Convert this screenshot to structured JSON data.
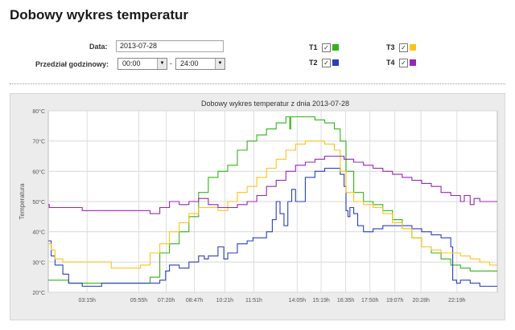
{
  "header": {
    "title": "Dobowy wykres temperatur"
  },
  "form": {
    "date_label": "Data:",
    "date_value": "2013-07-28",
    "range_label": "Przedział godzinowy:",
    "time_from": "00:00",
    "time_to": "24:00",
    "separator": "-"
  },
  "series_toggles": [
    {
      "label": "T1",
      "checked": true,
      "color": "#33b31a"
    },
    {
      "label": "T2",
      "checked": true,
      "color": "#2b3fbf"
    },
    {
      "label": "T3",
      "checked": true,
      "color": "#ffc21a"
    },
    {
      "label": "T4",
      "checked": true,
      "color": "#9926b8"
    }
  ],
  "chart_data": {
    "type": "line",
    "title": "Dobowy wykres temperatur  z dnia 2013-07-28",
    "ylabel": "Temperatura",
    "xlabel": "",
    "xlim": [
      1.25,
      24.4
    ],
    "ylim": [
      20,
      80
    ],
    "yticks": [
      20,
      30,
      40,
      50,
      60,
      70,
      80
    ],
    "ytick_labels": [
      "20°C",
      "30°C",
      "40°C",
      "50°C",
      "60°C",
      "70°C",
      "80°C"
    ],
    "xticks": [
      3.25,
      5.917,
      7.333,
      8.783,
      10.35,
      11.85,
      14.083,
      15.317,
      16.583,
      17.833,
      19.117,
      20.467,
      22.317
    ],
    "xtick_labels": [
      "03:15h",
      "05:55h",
      "07:20h",
      "08:47h",
      "10:21h",
      "11:51h",
      "14:05h",
      "15:19h",
      "16:35h",
      "17:50h",
      "19:07h",
      "20:28h",
      "22:19h"
    ],
    "grid": true,
    "series": [
      {
        "name": "T1",
        "color": "#33b31a",
        "x": [
          1.25,
          2.2,
          2.3,
          5.0,
          6.0,
          6.5,
          7.0,
          7.5,
          8.0,
          8.5,
          9.0,
          9.5,
          10.0,
          10.5,
          11.0,
          11.5,
          12.0,
          12.5,
          13.0,
          13.5,
          13.7,
          13.75,
          14.5,
          15.0,
          15.5,
          16.0,
          16.3,
          16.6,
          17.0,
          17.5,
          18.0,
          18.5,
          19.0,
          19.5,
          20.0,
          20.5,
          21.0,
          21.5,
          22.0,
          22.5,
          23.0,
          23.5,
          24.4
        ],
        "y": [
          24,
          24,
          23,
          23,
          23,
          25,
          33,
          36,
          40,
          45,
          53,
          58,
          60,
          62,
          67,
          70,
          72,
          74,
          76,
          78,
          74,
          78,
          78,
          77,
          76,
          74,
          70,
          60,
          53,
          50,
          49,
          47,
          44,
          41,
          38,
          35,
          33,
          31,
          29,
          28,
          27,
          27,
          27
        ]
      },
      {
        "name": "T2",
        "color": "#2b3fbf",
        "x": [
          1.25,
          1.4,
          1.6,
          2.0,
          2.3,
          2.8,
          3.0,
          4.0,
          5.0,
          5.5,
          6.0,
          6.5,
          7.0,
          7.3,
          7.5,
          8.0,
          8.5,
          9.0,
          9.3,
          9.5,
          10.0,
          10.3,
          10.5,
          11.0,
          11.5,
          11.8,
          12.0,
          12.5,
          12.8,
          13.0,
          13.2,
          13.4,
          13.6,
          13.8,
          14.0,
          14.5,
          15.0,
          15.5,
          16.0,
          16.3,
          16.5,
          16.6,
          16.7,
          16.8,
          17.0,
          17.2,
          17.5,
          18.0,
          18.5,
          19.0,
          19.5,
          20.0,
          20.5,
          21.0,
          21.5,
          22.0,
          22.1,
          22.3,
          22.5,
          23.0,
          23.5,
          24.4
        ],
        "y": [
          37,
          32,
          29,
          26,
          23,
          23,
          22,
          23,
          23,
          23,
          23,
          23,
          24,
          27,
          29,
          28,
          30,
          32,
          31,
          32,
          35,
          31,
          33,
          36,
          37,
          38,
          38,
          40,
          44,
          50,
          46,
          42,
          50,
          54,
          50,
          58,
          60,
          61,
          61,
          59,
          55,
          47,
          45,
          48,
          46,
          42,
          40,
          41,
          42,
          42,
          42,
          41,
          40,
          39,
          38,
          35,
          24,
          23,
          24,
          23,
          22,
          22
        ]
      },
      {
        "name": "T3",
        "color": "#ffc21a",
        "x": [
          1.25,
          1.4,
          1.6,
          2.0,
          3.0,
          4.5,
          5.5,
          6.0,
          6.5,
          7.0,
          7.5,
          8.0,
          8.5,
          9.0,
          9.5,
          10.0,
          10.5,
          11.0,
          11.5,
          12.0,
          12.5,
          13.0,
          13.5,
          14.0,
          14.5,
          15.0,
          15.5,
          16.0,
          16.3,
          16.6,
          17.0,
          17.5,
          18.0,
          18.5,
          19.0,
          19.5,
          20.0,
          20.5,
          21.0,
          21.5,
          22.0,
          22.5,
          23.0,
          23.5,
          24.0,
          24.4
        ],
        "y": [
          36,
          34,
          31,
          30,
          30,
          28,
          28,
          29,
          33,
          36,
          40,
          43,
          46,
          48,
          48,
          47,
          50,
          53,
          55,
          58,
          61,
          64,
          67,
          69,
          70,
          70,
          69,
          67,
          60,
          53,
          50,
          49,
          48,
          46,
          43,
          41,
          38,
          35,
          34,
          33,
          33,
          32,
          31,
          30,
          29,
          29
        ]
      },
      {
        "name": "T4",
        "color": "#9926b8",
        "x": [
          1.25,
          1.3,
          2.0,
          3.0,
          4.0,
          5.0,
          6.0,
          6.5,
          7.0,
          7.5,
          8.0,
          8.5,
          9.0,
          9.5,
          10.0,
          10.5,
          11.0,
          11.5,
          12.0,
          12.5,
          13.0,
          13.5,
          14.0,
          14.5,
          15.0,
          15.5,
          16.0,
          16.5,
          17.0,
          17.5,
          18.0,
          18.5,
          19.0,
          19.5,
          20.0,
          20.5,
          21.0,
          21.5,
          22.0,
          22.5,
          22.7,
          23.0,
          23.2,
          23.5,
          24.0,
          24.4
        ],
        "y": [
          49,
          48,
          48,
          47,
          47,
          47,
          47,
          46,
          48,
          50,
          49,
          50,
          51,
          49,
          48,
          48,
          49,
          50,
          52,
          55,
          57,
          60,
          62,
          63,
          64,
          65,
          65,
          64,
          63,
          62,
          61,
          60,
          59,
          58,
          57,
          56,
          55,
          53,
          52,
          50,
          52,
          49,
          51,
          50,
          50,
          50
        ]
      }
    ]
  }
}
